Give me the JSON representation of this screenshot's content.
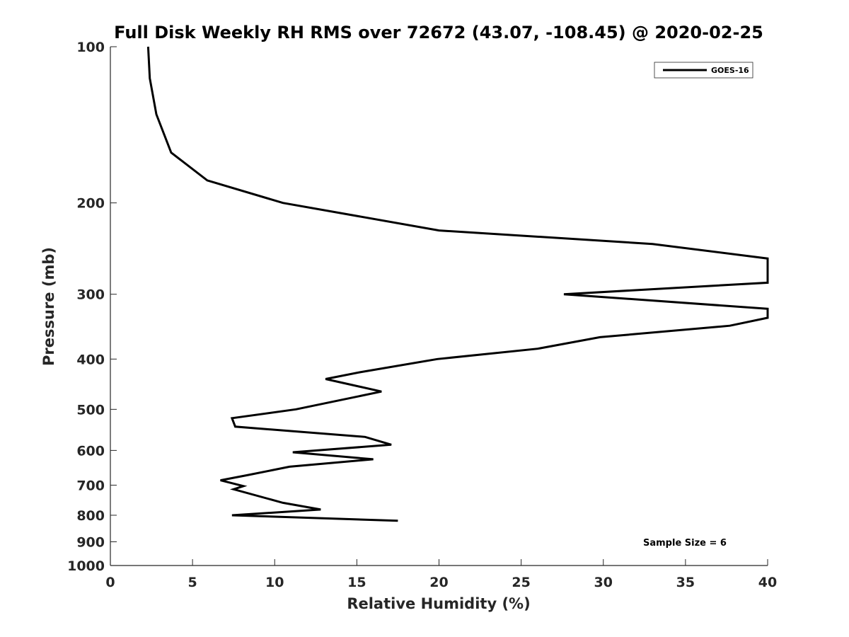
{
  "chart_data": {
    "type": "line",
    "title": "Full Disk Weekly RH RMS over 72672 (43.07, -108.45) @ 2020-02-25",
    "xlabel": "Relative Humidity (%)",
    "ylabel": "Pressure (mb)",
    "xlim": [
      0,
      40
    ],
    "ylim": [
      100,
      1000
    ],
    "y_scale": "log",
    "y_reversed": true,
    "xticks": [
      0,
      5,
      10,
      15,
      20,
      25,
      30,
      35,
      40
    ],
    "xtick_labels": [
      "0",
      "5",
      "10",
      "15",
      "20",
      "25",
      "30",
      "35",
      "40"
    ],
    "yticks": [
      100,
      200,
      300,
      400,
      500,
      600,
      700,
      800,
      900,
      1000
    ],
    "ytick_labels": [
      "100",
      "200",
      "300",
      "400",
      "500",
      "600",
      "700",
      "800",
      "900",
      "1000"
    ],
    "grid": false,
    "legend_position": "top-right",
    "annotation": "Sample Size = 6",
    "line_color": "#000000",
    "series": [
      {
        "name": "GOES-16",
        "x": [
          2.3,
          2.4,
          2.8,
          3.7,
          5.9,
          10.5,
          20.0,
          33.0,
          40.0,
          40.0,
          27.6,
          40.0,
          40.0,
          37.7,
          29.8,
          26.0,
          19.9,
          15.2,
          13.1,
          16.5,
          11.3,
          7.4,
          7.6,
          15.5,
          17.1,
          11.1,
          16.0,
          10.9,
          8.3,
          6.7,
          8.1,
          7.5,
          10.5,
          12.8,
          7.4,
          17.5
        ],
        "y": [
          100,
          115,
          135,
          160,
          181,
          200,
          226,
          240,
          256,
          285,
          300,
          320,
          333,
          345,
          363,
          382,
          400,
          424,
          437,
          462,
          500,
          520,
          540,
          565,
          585,
          605,
          624,
          645,
          670,
          685,
          703,
          713,
          757,
          780,
          800,
          820
        ]
      }
    ]
  }
}
